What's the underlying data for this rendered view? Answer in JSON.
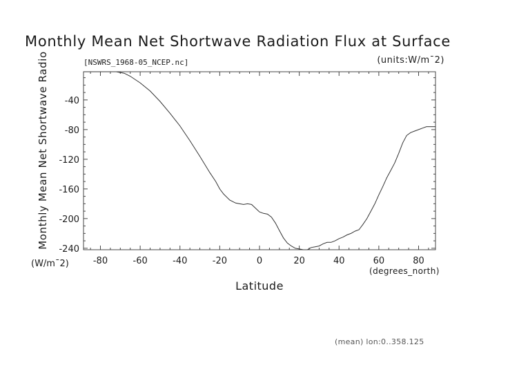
{
  "title": "Monthly Mean Net Shortwave Radiation Flux at Surface",
  "subtitle_left": "[NSWRS_1968-05_NCEP.nc]",
  "subtitle_right": "(units:W/m¯2)",
  "y_label": "Monthly Mean Net Shortwave Radio",
  "y_units": "(W/m¯2)",
  "x_label": "Latitude",
  "x_units": "(degrees_north)",
  "footer": "(mean) lon:0..358.125",
  "chart_data": {
    "type": "line",
    "title": "Monthly Mean Net Shortwave Radiation Flux at Surface",
    "xlabel": "Latitude",
    "ylabel": "Monthly Mean Net Shortwave Radio",
    "xlim": [
      -88.5,
      88.5
    ],
    "ylim": [
      -242,
      -2
    ],
    "x_ticks": [
      -80,
      -60,
      -40,
      -20,
      0,
      20,
      40,
      60,
      80
    ],
    "y_ticks": [
      -40,
      -80,
      -120,
      -160,
      -200,
      -240
    ],
    "grid": false,
    "line_color": "#333333",
    "x": [
      -88.5,
      -80,
      -75,
      -72,
      -70,
      -68,
      -65,
      -60,
      -55,
      -50,
      -45,
      -40,
      -35,
      -30,
      -25,
      -22,
      -20,
      -18,
      -15,
      -12,
      -10,
      -8,
      -6,
      -4,
      -2,
      0,
      2,
      4,
      6,
      8,
      10,
      12,
      14,
      16,
      18,
      20,
      22,
      24,
      26,
      28,
      30,
      32,
      34,
      36,
      38,
      40,
      42,
      44,
      46,
      48,
      50,
      52,
      54,
      56,
      58,
      60,
      62,
      64,
      66,
      68,
      70,
      72,
      74,
      76,
      78,
      80,
      82,
      84,
      86,
      88.5
    ],
    "y": [
      -2,
      -2,
      -2,
      -2,
      -3,
      -4,
      -8,
      -17,
      -28,
      -42,
      -58,
      -75,
      -95,
      -116,
      -138,
      -150,
      -160,
      -167,
      -175,
      -179,
      -180,
      -181,
      -180,
      -181,
      -186,
      -191,
      -193,
      -194,
      -198,
      -206,
      -216,
      -226,
      -233,
      -237,
      -240,
      -241,
      -242,
      -242,
      -239,
      -238,
      -237,
      -234,
      -232,
      -232,
      -230,
      -227,
      -225,
      -222,
      -220,
      -217,
      -215,
      -208,
      -200,
      -190,
      -180,
      -168,
      -157,
      -145,
      -135,
      -125,
      -112,
      -98,
      -88,
      -84,
      -82,
      -80,
      -78,
      -76,
      -76,
      -76
    ]
  }
}
